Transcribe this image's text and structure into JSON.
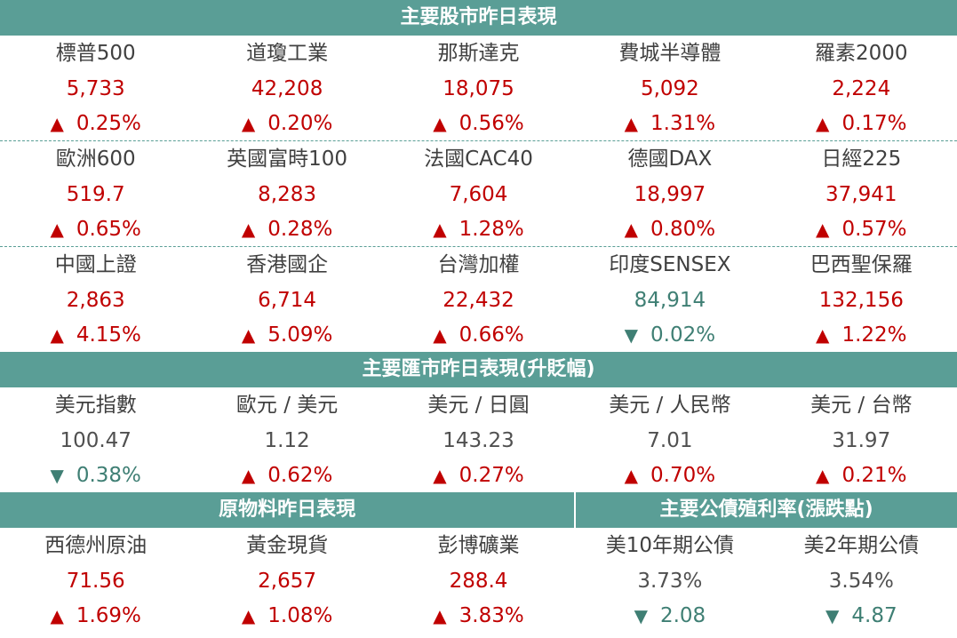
{
  "stocks": {
    "title": "主要股市昨日表現",
    "rows": [
      [
        {
          "name": "標普500",
          "value": "5,733",
          "dir": "up",
          "change": "0.25%"
        },
        {
          "name": "道瓊工業",
          "value": "42,208",
          "dir": "up",
          "change": "0.20%"
        },
        {
          "name": "那斯達克",
          "value": "18,075",
          "dir": "up",
          "change": "0.56%"
        },
        {
          "name": "費城半導體",
          "value": "5,092",
          "dir": "up",
          "change": "1.31%"
        },
        {
          "name": "羅素2000",
          "value": "2,224",
          "dir": "up",
          "change": "0.17%"
        }
      ],
      [
        {
          "name": "歐洲600",
          "value": "519.7",
          "dir": "up",
          "change": "0.65%"
        },
        {
          "name": "英國富時100",
          "value": "8,283",
          "dir": "up",
          "change": "0.28%"
        },
        {
          "name": "法國CAC40",
          "value": "7,604",
          "dir": "up",
          "change": "1.28%"
        },
        {
          "name": "德國DAX",
          "value": "18,997",
          "dir": "up",
          "change": "0.80%"
        },
        {
          "name": "日經225",
          "value": "37,941",
          "dir": "up",
          "change": "0.57%"
        }
      ],
      [
        {
          "name": "中國上證",
          "value": "2,863",
          "dir": "up",
          "change": "4.15%"
        },
        {
          "name": "香港國企",
          "value": "6,714",
          "dir": "up",
          "change": "5.09%"
        },
        {
          "name": "台灣加權",
          "value": "22,432",
          "dir": "up",
          "change": "0.66%"
        },
        {
          "name": "印度SENSEX",
          "value": "84,914",
          "dir": "down",
          "change": "0.02%"
        },
        {
          "name": "巴西聖保羅",
          "value": "132,156",
          "dir": "up",
          "change": "1.22%"
        }
      ]
    ]
  },
  "fx": {
    "title": "主要匯市昨日表現(升貶幅)",
    "items": [
      {
        "name": "美元指數",
        "value": "100.47",
        "dir": "down",
        "change": "0.38%"
      },
      {
        "name": "歐元 / 美元",
        "value": "1.12",
        "dir": "up",
        "change": "0.62%"
      },
      {
        "name": "美元 / 日圓",
        "value": "143.23",
        "dir": "up",
        "change": "0.27%"
      },
      {
        "name": "美元 / 人民幣",
        "value": "7.01",
        "dir": "up",
        "change": "0.70%"
      },
      {
        "name": "美元 / 台幣",
        "value": "31.97",
        "dir": "up",
        "change": "0.21%"
      }
    ]
  },
  "commodities": {
    "title": "原物料昨日表現",
    "items": [
      {
        "name": "西德州原油",
        "value": "71.56",
        "dir": "up",
        "change": "1.69%"
      },
      {
        "name": "黃金現貨",
        "value": "2,657",
        "dir": "up",
        "change": "1.08%"
      },
      {
        "name": "彭博礦業",
        "value": "288.4",
        "dir": "up",
        "change": "3.83%"
      }
    ]
  },
  "bonds": {
    "title": "主要公債殖利率(漲跌點)",
    "items": [
      {
        "name": "美10年期公債",
        "value": "3.73%",
        "dir": "down",
        "change": "2.08"
      },
      {
        "name": "美2年期公債",
        "value": "3.54%",
        "dir": "down",
        "change": "4.87"
      }
    ]
  },
  "colors": {
    "header_bg": "#5a9e96",
    "up": "#c00000",
    "down": "#3f7f74",
    "neutral": "#505050"
  },
  "icons": {
    "up": "▲",
    "down": "▼"
  }
}
